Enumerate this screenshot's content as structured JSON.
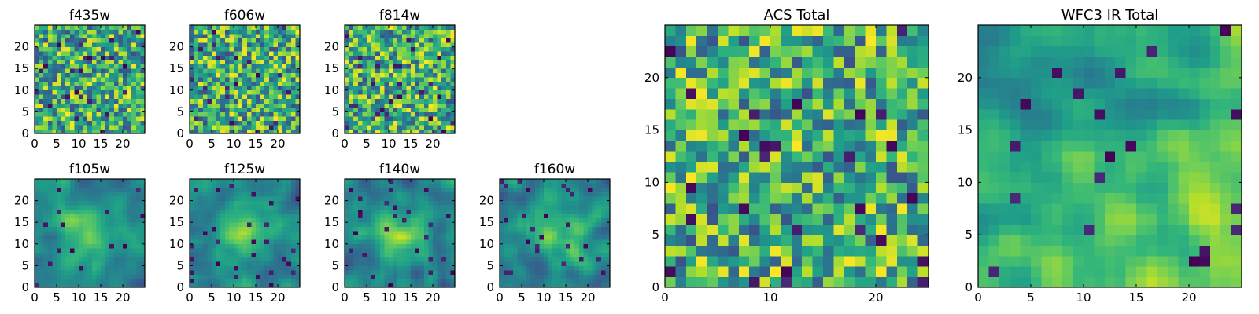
{
  "chart_data": [
    {
      "type": "heatmap",
      "title": "f435w",
      "xticks": [
        "0",
        "5",
        "10",
        "15",
        "20"
      ],
      "yticks": [
        "0",
        "5",
        "10",
        "15",
        "20"
      ],
      "xlim": [
        0,
        25
      ],
      "ylim": [
        0,
        25
      ],
      "grid_size": 25,
      "colormap": "viridis",
      "texture": "fine noise",
      "seed": 11
    },
    {
      "type": "heatmap",
      "title": "f606w",
      "xticks": [
        "0",
        "5",
        "10",
        "15",
        "20"
      ],
      "yticks": [
        "0",
        "5",
        "10",
        "15",
        "20"
      ],
      "xlim": [
        0,
        25
      ],
      "ylim": [
        0,
        25
      ],
      "grid_size": 25,
      "colormap": "viridis",
      "texture": "fine noise",
      "seed": 23
    },
    {
      "type": "heatmap",
      "title": "f814w",
      "xticks": [
        "0",
        "5",
        "10",
        "15",
        "20"
      ],
      "yticks": [
        "0",
        "5",
        "10",
        "15",
        "20"
      ],
      "xlim": [
        0,
        25
      ],
      "ylim": [
        0,
        25
      ],
      "grid_size": 25,
      "colormap": "viridis",
      "texture": "fine noise",
      "seed": 37
    },
    {
      "type": "heatmap",
      "title": "f105w",
      "xticks": [
        "0",
        "5",
        "10",
        "15",
        "20"
      ],
      "yticks": [
        "0",
        "5",
        "10",
        "15",
        "20"
      ],
      "xlim": [
        0,
        25
      ],
      "ylim": [
        0,
        25
      ],
      "grid_size": 25,
      "colormap": "viridis",
      "texture": "smooth, bright center",
      "seed": 41
    },
    {
      "type": "heatmap",
      "title": "f125w",
      "xticks": [
        "0",
        "5",
        "10",
        "15",
        "20"
      ],
      "yticks": [
        "0",
        "5",
        "10",
        "15",
        "20"
      ],
      "xlim": [
        0,
        25
      ],
      "ylim": [
        0,
        25
      ],
      "grid_size": 25,
      "colormap": "viridis",
      "texture": "smooth, bright center",
      "seed": 53
    },
    {
      "type": "heatmap",
      "title": "f140w",
      "xticks": [
        "0",
        "5",
        "10",
        "15",
        "20"
      ],
      "yticks": [
        "0",
        "5",
        "10",
        "15",
        "20"
      ],
      "xlim": [
        0,
        25
      ],
      "ylim": [
        0,
        25
      ],
      "grid_size": 25,
      "colormap": "viridis",
      "texture": "smooth, bright center",
      "seed": 67
    },
    {
      "type": "heatmap",
      "title": "f160w",
      "xticks": [
        "0",
        "5",
        "10",
        "15",
        "20"
      ],
      "yticks": [
        "0",
        "5",
        "10",
        "15",
        "20"
      ],
      "xlim": [
        0,
        25
      ],
      "ylim": [
        0,
        25
      ],
      "grid_size": 25,
      "colormap": "viridis",
      "texture": "smooth, bright center",
      "seed": 79
    },
    {
      "type": "heatmap",
      "title": "ACS Total",
      "xticks": [
        "0",
        "10",
        "20"
      ],
      "yticks": [
        "0",
        "5",
        "10",
        "15",
        "20"
      ],
      "xlim": [
        0,
        25
      ],
      "ylim": [
        0,
        25
      ],
      "grid_size": 25,
      "colormap": "viridis",
      "texture": "blocky noise",
      "seed": 83
    },
    {
      "type": "heatmap",
      "title": "WFC3 IR Total",
      "xticks": [
        "0",
        "5",
        "10",
        "15",
        "20"
      ],
      "yticks": [
        "0",
        "5",
        "10",
        "15",
        "20"
      ],
      "xlim": [
        0,
        25
      ],
      "ylim": [
        0,
        25
      ],
      "grid_size": 25,
      "colormap": "viridis",
      "texture": "smooth, bright lower-right",
      "seed": 97
    }
  ]
}
